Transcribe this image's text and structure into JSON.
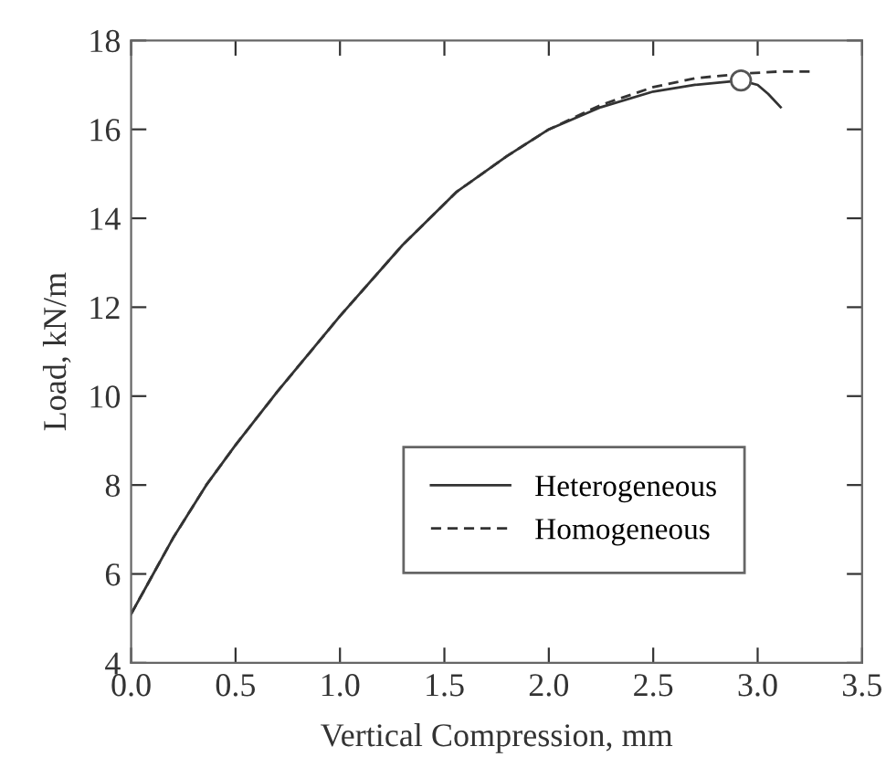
{
  "chart_data": {
    "type": "line",
    "xlabel": "Vertical Compression, mm",
    "ylabel": "Load, kN/m",
    "xlim": [
      0,
      3.5
    ],
    "xticks": [
      {
        "value": 0,
        "label": "0.0"
      },
      0.5,
      {
        "value": 1,
        "label": "1.0"
      },
      1.5,
      {
        "value": 2,
        "label": "2.0"
      },
      2.5,
      {
        "value": 3,
        "label": "3.0"
      },
      3.5
    ],
    "ylim": [
      4,
      18
    ],
    "yticks": [
      4,
      6,
      8,
      10,
      12,
      14,
      16,
      18
    ],
    "grid": false,
    "legend": "bottom right",
    "series": [
      {
        "name": "Heterogeneous",
        "color": "#333333",
        "line_style": "solid",
        "x": [
          0,
          0.1,
          0.2,
          0.36,
          0.5,
          0.7,
          1.0,
          1.3,
          1.56,
          1.8,
          2.0,
          2.25,
          2.5,
          2.7,
          2.92,
          3.0,
          3.05,
          3.11
        ],
        "values": [
          5.1,
          5.95,
          6.8,
          8.0,
          8.9,
          10.1,
          11.8,
          13.4,
          14.6,
          15.4,
          16.0,
          16.5,
          16.85,
          17.0,
          17.1,
          17.0,
          16.8,
          16.5
        ]
      },
      {
        "name": "Homogeneous",
        "color": "#333333",
        "line_style": "dashed",
        "x": [
          0,
          0.1,
          0.2,
          0.36,
          0.5,
          0.7,
          1.0,
          1.3,
          1.56,
          1.8,
          2.0,
          2.25,
          2.5,
          2.7,
          2.92,
          3.1,
          3.25
        ],
        "values": [
          5.1,
          5.95,
          6.8,
          8.0,
          8.9,
          10.1,
          11.8,
          13.4,
          14.6,
          15.4,
          16.0,
          16.55,
          16.95,
          17.15,
          17.25,
          17.3,
          17.3
        ]
      },
      {
        "type": "scatter",
        "marker": "circle",
        "color": "#555555",
        "x": [
          2.92
        ],
        "values": [
          17.1
        ]
      }
    ]
  }
}
